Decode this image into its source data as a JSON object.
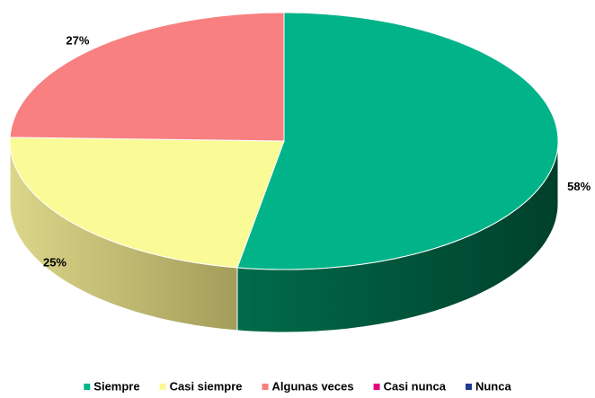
{
  "chart_data": {
    "type": "pie3d",
    "categories": [
      "Siempre",
      "Casi siempre",
      "Algunas veces",
      "Casi nunca",
      "Nunca"
    ],
    "values": [
      58,
      25,
      27,
      0,
      0
    ],
    "value_labels": [
      "58%",
      "25%",
      "27%",
      null,
      null
    ],
    "colors": [
      "#00b388",
      "#fafa96",
      "#f88080",
      "#e6007e",
      "#1f3a93"
    ],
    "legend": "bottom"
  }
}
